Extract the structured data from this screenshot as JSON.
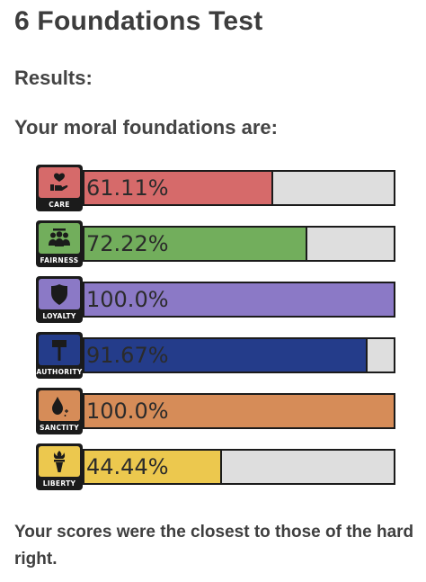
{
  "page": {
    "title": "6 Foundations Test",
    "results_heading": "Results:",
    "subtitle": "Your moral foundations are:",
    "footer": "Your scores were the closest to those of the hard right."
  },
  "foundations": [
    {
      "key": "care",
      "label": "CARE",
      "score_text": "61.11%",
      "score": 61.11,
      "color": "#d66a6a",
      "icon": "heart-hand-icon"
    },
    {
      "key": "fairness",
      "label": "FAIRNESS",
      "score_text": "72.22%",
      "score": 72.22,
      "color": "#72ae5c",
      "icon": "people-group-icon"
    },
    {
      "key": "loyalty",
      "label": "LOYALTY",
      "score_text": "100.0%",
      "score": 100.0,
      "color": "#8b79c6",
      "icon": "shield-icon"
    },
    {
      "key": "authority",
      "label": "AUTHORITY",
      "score_text": "91.67%",
      "score": 91.67,
      "color": "#243c8a",
      "icon": "gavel-icon"
    },
    {
      "key": "sanctity",
      "label": "SANCTITY",
      "score_text": "100.0%",
      "score": 100.0,
      "color": "#d68c58",
      "icon": "droplet-icon"
    },
    {
      "key": "liberty",
      "label": "LIBERTY",
      "score_text": "44.44%",
      "score": 44.44,
      "color": "#ecc84e",
      "icon": "torch-icon"
    }
  ]
}
